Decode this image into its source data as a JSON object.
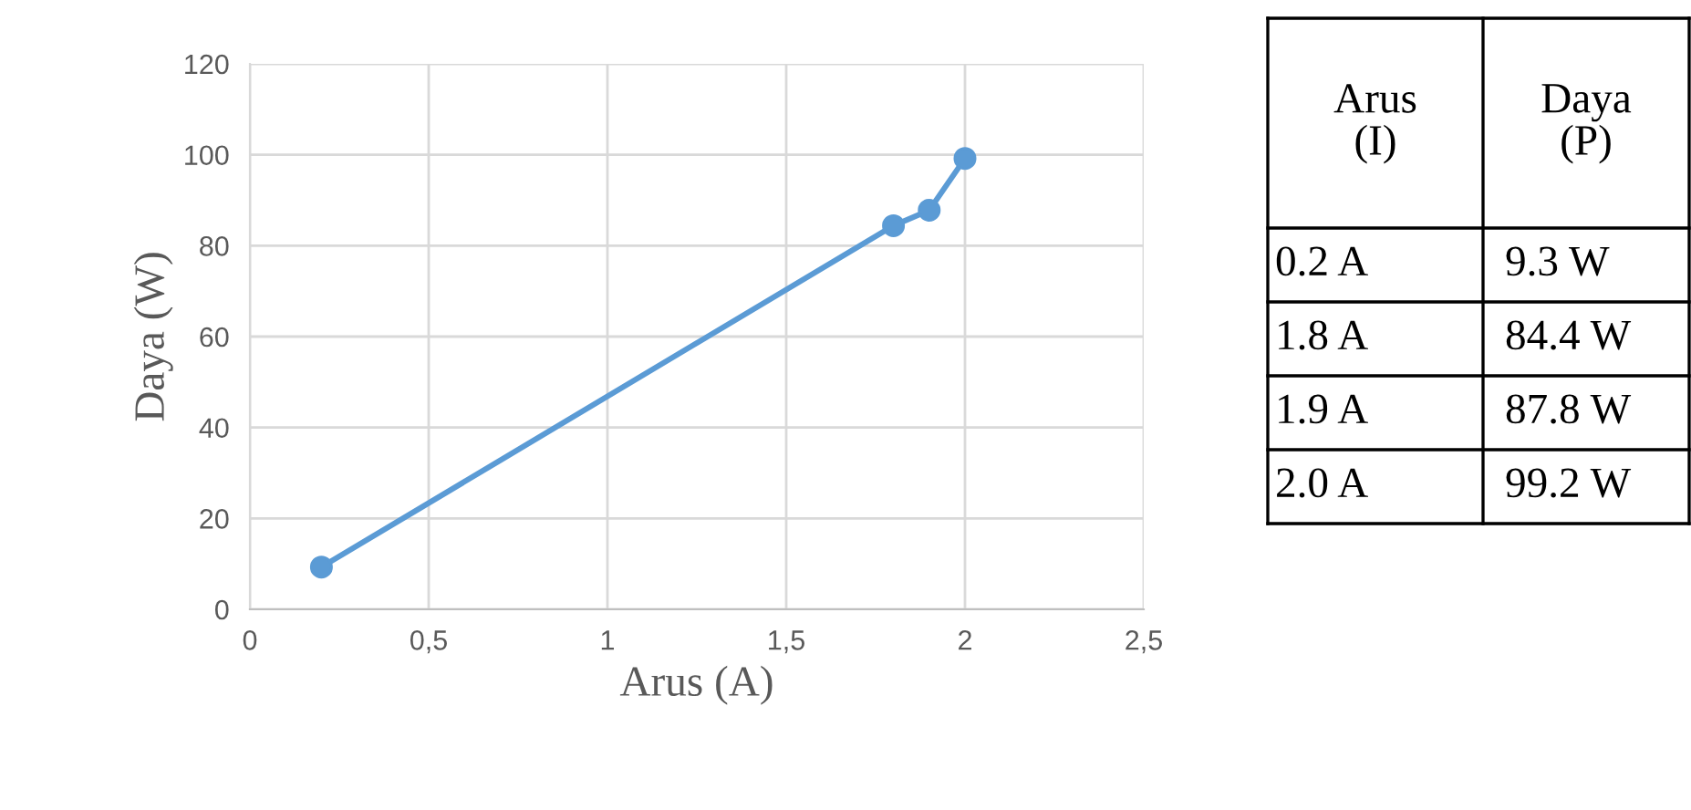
{
  "chart_data": {
    "type": "line",
    "xlabel": "Arus (A)",
    "ylabel": "Daya (W)",
    "x": [
      0.2,
      1.8,
      1.9,
      2.0
    ],
    "series": [
      {
        "color": "#5b9bd5",
        "values": [
          9.3,
          84.4,
          87.8,
          99.2
        ]
      }
    ],
    "value_labels": [
      "9.3 W",
      "84.4 W",
      "87.8 W",
      "99.2 W"
    ],
    "annotations": [
      "Arus\n(I)",
      "Daya\n(P)",
      "0.2 A",
      "1.8 A",
      "1.9 A",
      "2.0 A"
    ],
    "xlim": [
      0,
      2.5
    ],
    "xticks": [
      0,
      {
        "value": 0.5,
        "label": "0,5"
      },
      1,
      {
        "value": 1.5,
        "label": "1,5"
      },
      2,
      {
        "value": 2.5,
        "label": "2,5"
      }
    ],
    "ylim": [
      0,
      120
    ],
    "yticks": [
      0,
      20,
      40,
      60,
      80,
      100,
      120
    ],
    "grid": true,
    "marker": "circle",
    "line_style": "solid",
    "legend": false
  }
}
